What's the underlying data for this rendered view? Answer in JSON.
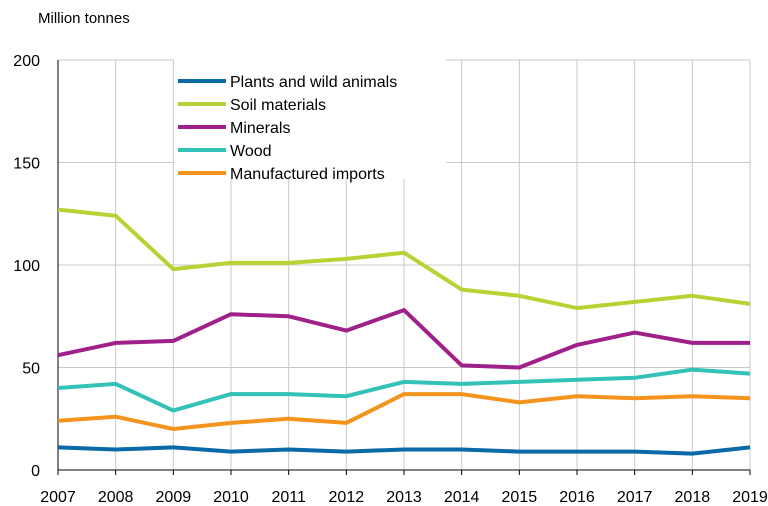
{
  "chart_data": {
    "type": "line",
    "title": "",
    "unit_label": "Million tonnes",
    "xlabel": "",
    "ylabel": "",
    "x": [
      "2007",
      "2008",
      "2009",
      "2010",
      "2011",
      "2012",
      "2013",
      "2014",
      "2015",
      "2016",
      "2017",
      "2018",
      "2019"
    ],
    "ylim": [
      0,
      200
    ],
    "yticks": [
      "0",
      "50",
      "100",
      "150",
      "200"
    ],
    "grid": "vertical",
    "legend_position": "top-center",
    "series": [
      {
        "name": "Plants and wild animals",
        "color": "#0a6aa8",
        "values": [
          11,
          10,
          11,
          9,
          10,
          9,
          10,
          10,
          9,
          9,
          9,
          8,
          11
        ]
      },
      {
        "name": "Soil materials",
        "color": "#b5d334",
        "values": [
          127,
          124,
          98,
          101,
          101,
          103,
          106,
          88,
          85,
          79,
          82,
          85,
          81
        ]
      },
      {
        "name": "Minerals",
        "color": "#a0208a",
        "values": [
          56,
          62,
          63,
          76,
          75,
          68,
          78,
          51,
          50,
          61,
          67,
          62,
          62
        ]
      },
      {
        "name": "Wood",
        "color": "#33c1b8",
        "values": [
          40,
          42,
          29,
          37,
          37,
          36,
          43,
          42,
          43,
          44,
          45,
          49,
          47
        ]
      },
      {
        "name": "Manufactured imports",
        "color": "#f5931f",
        "values": [
          24,
          26,
          20,
          23,
          25,
          23,
          37,
          37,
          33,
          36,
          35,
          36,
          35
        ]
      }
    ]
  }
}
